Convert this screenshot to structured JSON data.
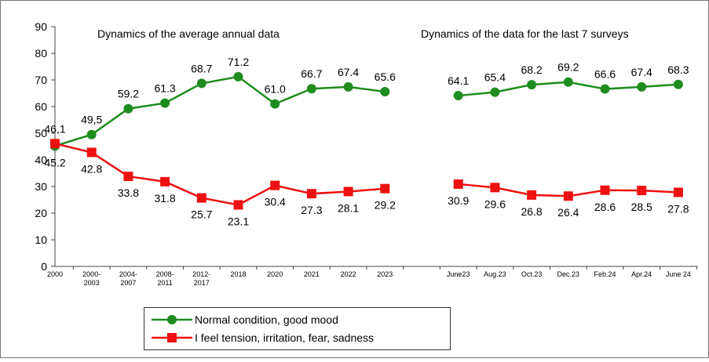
{
  "chart_data": {
    "type": "line",
    "annotations": [
      "Dynamics of the average annual data",
      "Dynamics of the data for the last 7 surveys"
    ],
    "categories": [
      "2000",
      "2000-2003",
      "2004-2007",
      "2008-2011",
      "2012-2017",
      "2018",
      "2020",
      "2021",
      "2022",
      "2023",
      null,
      "June23",
      "Aug.23",
      "Oct.23",
      "Dec.23",
      "Feb.24",
      "Apr.24",
      "June 24"
    ],
    "series": [
      {
        "name": "Normal condition, good mood",
        "color": "#1e8c1e",
        "marker": "circle",
        "values": [
          45.2,
          49.5,
          59.2,
          61.3,
          68.7,
          71.2,
          61.0,
          66.7,
          67.4,
          65.6,
          null,
          64.1,
          65.4,
          68.2,
          69.2,
          66.6,
          67.4,
          68.3
        ],
        "value_labels": [
          "45.2",
          "49,5",
          "59.2",
          "61.3",
          "68.7",
          "71.2",
          "61.0",
          "66.7",
          "67.4",
          "65.6",
          null,
          "64.1",
          "65.4",
          "68.2",
          "69.2",
          "66.6",
          "67.4",
          "68.3"
        ]
      },
      {
        "name": "I feel tension, irritation, fear, sadness",
        "color": "#ee1111",
        "marker": "square",
        "values": [
          46.1,
          42.8,
          33.8,
          31.8,
          25.7,
          23.1,
          30.4,
          27.3,
          28.1,
          29.2,
          null,
          30.9,
          29.6,
          26.8,
          26.4,
          28.6,
          28.5,
          27.8
        ],
        "value_labels": [
          "46,1",
          "42.8",
          "33.8",
          "31.8",
          "25.7",
          "23.1",
          "30.4",
          "27.3",
          "28.1",
          "29.2",
          null,
          "30.9",
          "29.6",
          "26.8",
          "26.4",
          "28.6",
          "28.5",
          "27.8"
        ]
      }
    ],
    "ylim": [
      0,
      90
    ],
    "yticks": [
      0,
      10,
      20,
      30,
      40,
      50,
      60,
      70,
      80,
      90
    ],
    "legend": "bottom"
  }
}
